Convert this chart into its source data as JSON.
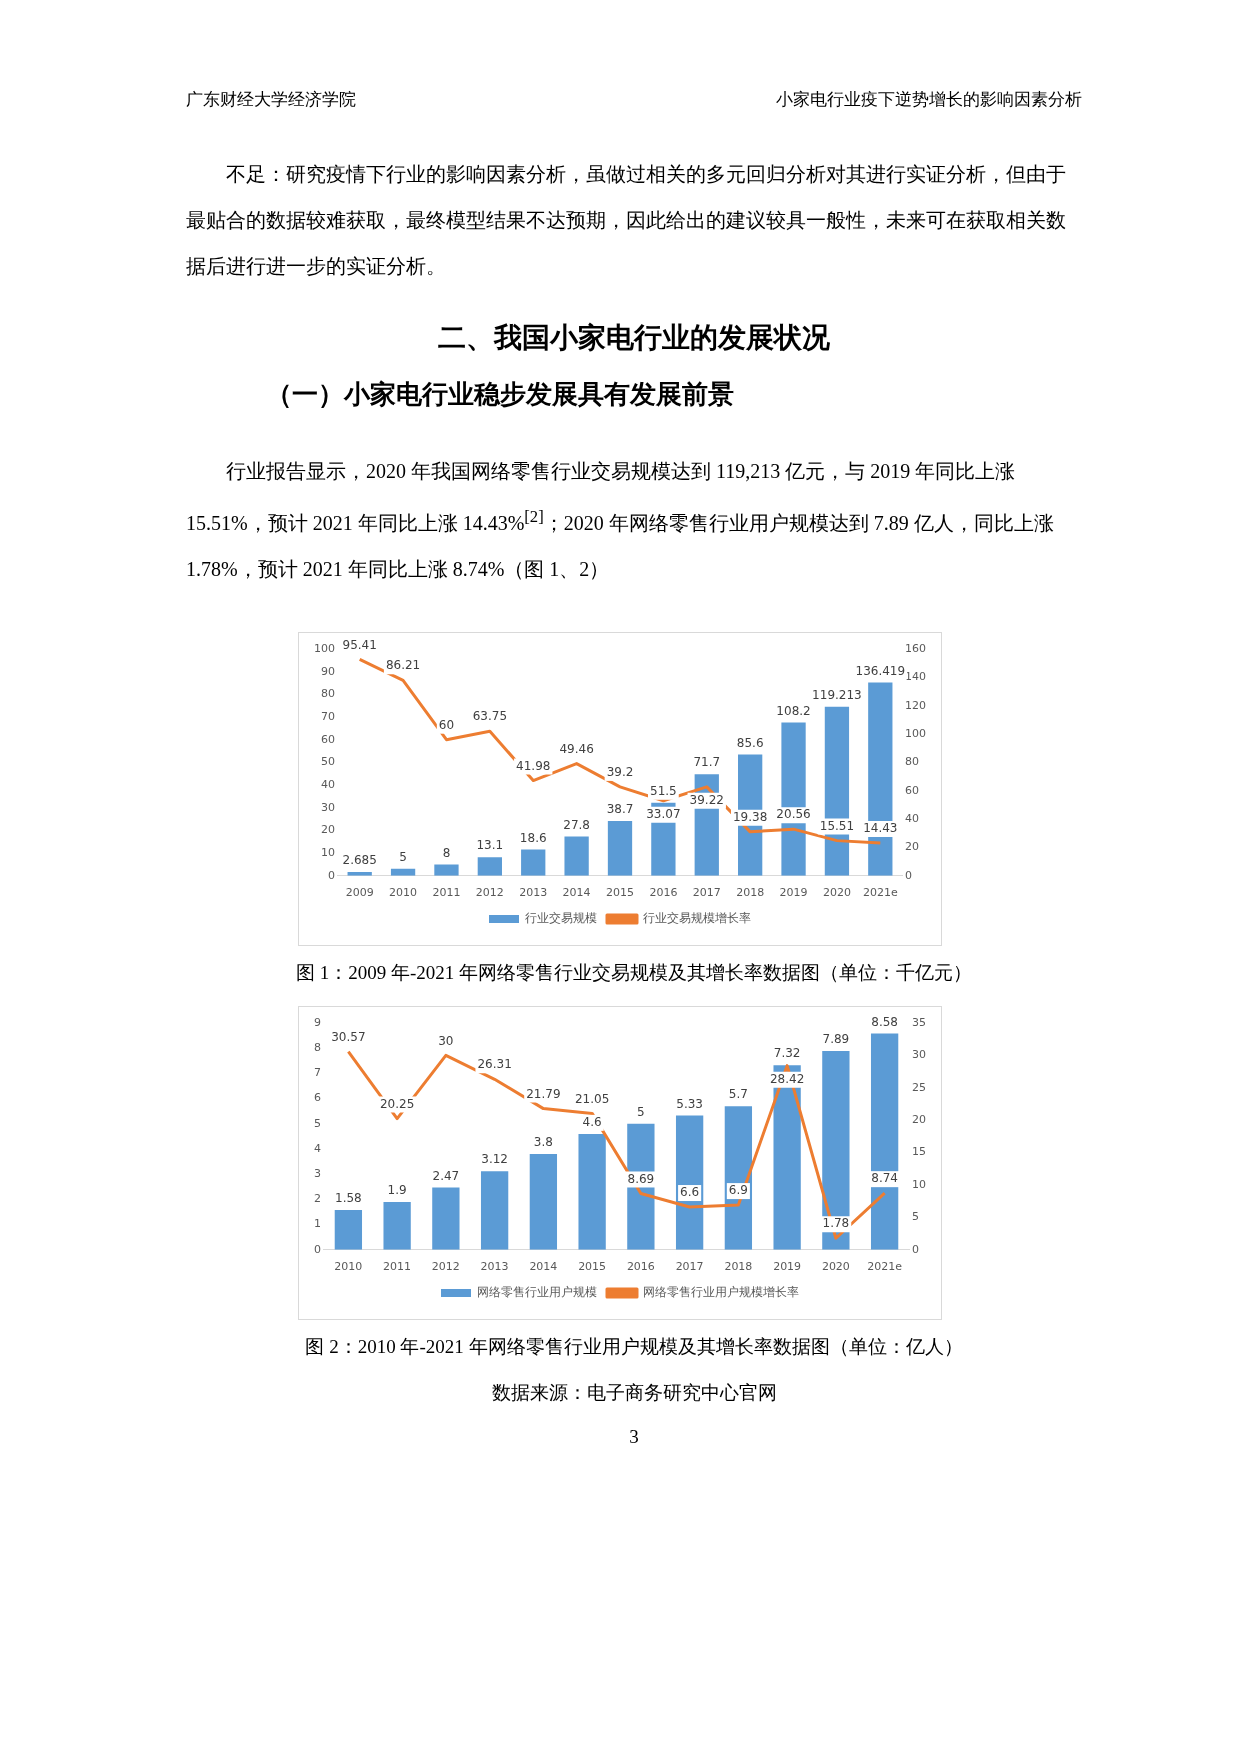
{
  "chart_data": [
    {
      "type": "bar",
      "categories": [
        "2009",
        "2010",
        "2011",
        "2012",
        "2013",
        "2014",
        "2015",
        "2016",
        "2017",
        "2018",
        "2019",
        "2020",
        "2021e"
      ],
      "series": [
        {
          "name": "行业交易规模",
          "axis": "y2",
          "color": "#5b9bd5",
          "values": [
            2.685,
            5,
            8,
            13.1,
            18.6,
            27.8,
            38.7,
            51.5,
            71.7,
            85.6,
            108.2,
            119.213,
            136.419
          ]
        },
        {
          "name": "行业交易规模增长率",
          "type": "line",
          "axis": "y",
          "color": "#ed7d31",
          "values": [
            95.41,
            86.21,
            60,
            63.75,
            41.98,
            49.46,
            39.2,
            33.07,
            39.22,
            19.38,
            20.56,
            15.51,
            14.43
          ]
        }
      ],
      "ylim": [
        0,
        100
      ],
      "yticks": [
        0,
        10,
        20,
        30,
        40,
        50,
        60,
        70,
        80,
        90,
        100
      ],
      "y2lim": [
        0,
        160
      ],
      "y2ticks": [
        0,
        20,
        40,
        60,
        80,
        100,
        120,
        140,
        160
      ],
      "data_labels": true,
      "legend": "bottom",
      "grid": false,
      "marker": "none",
      "line_style": "solid",
      "annotations": [
        "广东财经大学经济学院",
        "小家电行业疫下逆势增长的影响因素分析",
        "不足：研究疫情下行业的影响因素分析，虽做过相关的多元回归分析对其进行实证分析，但由于最贴合的数据较难获取，最终模型结果不达预期，因此给出的建议较具一般性，未来可在获取相关数据后进行进一步的实证分析。",
        "二、我国小家电行业的发展状况",
        "（一）小家电行业稳步发展具有发展前景",
        "行业报告显示，2020 年我国网络零售行业交易规模达到 119,213 亿元，与 2019 年同比上涨 15.51%，预计 2021 年同比上涨 14.43%$^{[2]}$；2020 年网络零售行业用户规模达到 7.89 亿人，同比上涨 1.78%，预计 2021 年同比上涨 8.74%（图 1、2）",
        "图 1：2009 年-2021 年网络零售行业交易规模及其增长率数据图（单位：千亿元）"
      ]
    },
    {
      "type": "bar",
      "categories": [
        "2010",
        "2011",
        "2012",
        "2013",
        "2014",
        "2015",
        "2016",
        "2017",
        "2018",
        "2019",
        "2020",
        "2021e"
      ],
      "series": [
        {
          "name": "网络零售行业用户规模",
          "axis": "y",
          "color": "#5b9bd5",
          "values": [
            1.58,
            1.9,
            2.47,
            3.12,
            3.8,
            4.6,
            5,
            5.33,
            5.7,
            7.32,
            7.89,
            8.58
          ]
        },
        {
          "name": "网络零售行业用户规模增长率",
          "type": "line",
          "axis": "y2",
          "color": "#ed7d31",
          "values": [
            30.57,
            20.25,
            30,
            26.31,
            21.79,
            21.05,
            8.69,
            6.6,
            6.9,
            28.42,
            1.78,
            8.74
          ]
        }
      ],
      "ylim": [
        0,
        9
      ],
      "yticks": [
        0,
        1,
        2,
        3,
        4,
        5,
        6,
        7,
        8,
        9
      ],
      "y2lim": [
        0,
        35
      ],
      "y2ticks": [
        0,
        5,
        10,
        15,
        20,
        25,
        30,
        35
      ],
      "data_labels": true,
      "legend": "bottom",
      "grid": false,
      "marker": "none",
      "line_style": "solid",
      "annotations": [
        "图 2：2010 年-2021 年网络零售行业用户规模及其增长率数据图（单位：亿人）",
        "数据来源：电子商务研究中心官网",
        "3"
      ]
    }
  ]
}
